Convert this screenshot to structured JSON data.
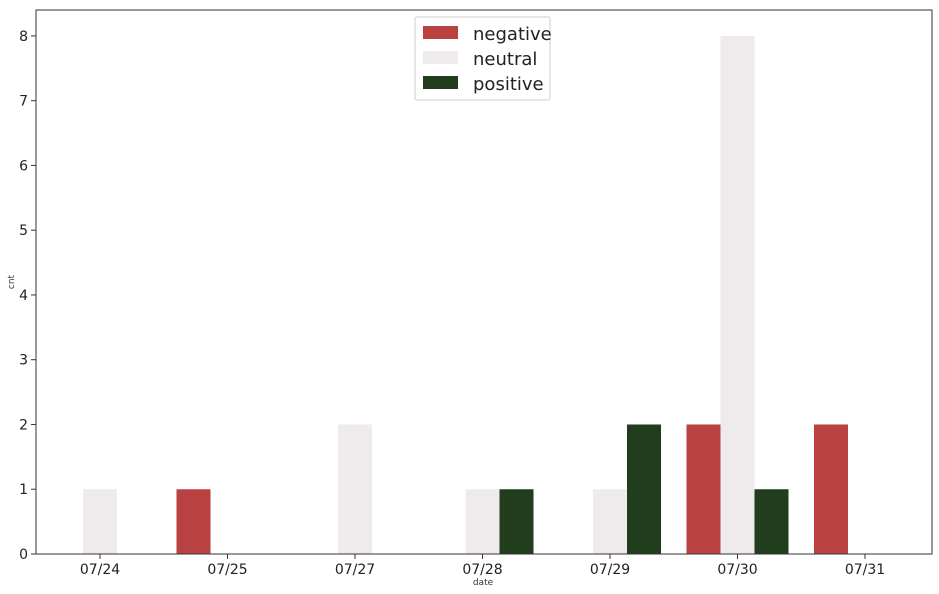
{
  "chart_data": {
    "type": "bar",
    "title": "",
    "xlabel": "date",
    "ylabel": "cnt",
    "categories": [
      "07/24",
      "07/25",
      "07/27",
      "07/28",
      "07/29",
      "07/30",
      "07/31"
    ],
    "series": [
      {
        "name": "negative",
        "color": "#b94141",
        "values": [
          0,
          1,
          0,
          0,
          0,
          2,
          2
        ]
      },
      {
        "name": "neutral",
        "color": "#efeaeb",
        "values": [
          1,
          0,
          2,
          1,
          1,
          8,
          0
        ]
      },
      {
        "name": "positive",
        "color": "#223d1e",
        "values": [
          0,
          0,
          0,
          1,
          2,
          1,
          0
        ]
      }
    ],
    "ylim": [
      0,
      8.4
    ],
    "yticks": [
      0,
      1,
      2,
      3,
      4,
      5,
      6,
      7,
      8
    ],
    "grid": false,
    "legend": "top-center"
  }
}
